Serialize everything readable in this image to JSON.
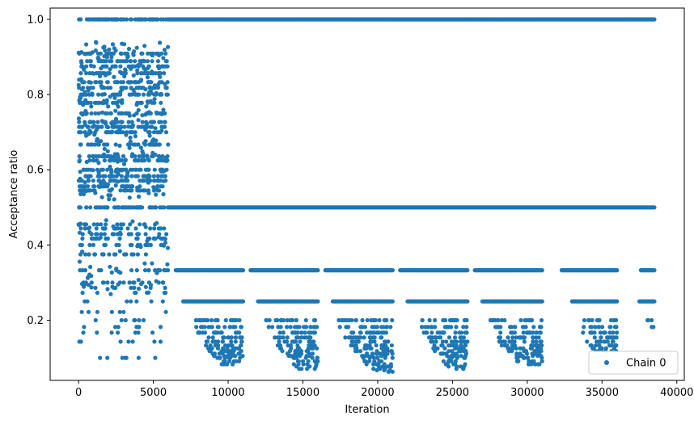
{
  "chart_data": {
    "type": "scatter",
    "title": "",
    "xlabel": "Iteration",
    "ylabel": "Acceptance ratio",
    "xlim": [
      -1900,
      40500
    ],
    "ylim": [
      0.04,
      1.03
    ],
    "xticks": [
      0,
      5000,
      10000,
      15000,
      20000,
      25000,
      30000,
      35000,
      40000
    ],
    "xtick_labels": [
      "0",
      "5000",
      "10000",
      "15000",
      "20000",
      "25000",
      "30000",
      "35000",
      "40000"
    ],
    "yticks": [
      0.2,
      0.4,
      0.6,
      0.8,
      1.0
    ],
    "ytick_labels": [
      "0.2",
      "0.4",
      "0.6",
      "0.8",
      "1.0"
    ],
    "grid": false,
    "legend_position": "lower-right",
    "color": "#1f77b4",
    "series": [
      {
        "name": "Chain 0",
        "description_phases": [
          {
            "x_range": [
              0,
              6000
            ],
            "y_levels_dense": [
              1.0,
              0.5,
              0.909,
              0.889,
              0.875,
              0.857,
              0.833,
              0.818,
              0.8,
              0.778,
              0.75,
              0.727,
              0.714,
              0.7,
              0.667,
              0.636,
              0.625,
              0.6,
              0.583,
              0.571,
              0.556,
              0.545,
              0.455,
              0.444,
              0.429,
              0.417,
              0.4,
              0.375,
              0.333,
              0.3,
              0.286,
              0.273,
              0.25,
              0.222,
              0.2,
              0.182,
              0.167,
              0.143,
              0.1
            ]
          },
          {
            "x_range": [
              6000,
              38500
            ],
            "y_levels_dense": [
              1.0,
              0.5,
              0.333
            ]
          }
        ],
        "dense_segments": [
          {
            "x": [
              6000,
              38500
            ],
            "y": 1.0
          },
          {
            "x": [
              6000,
              38500
            ],
            "y": 0.5
          },
          {
            "x": [
              6500,
              11000
            ],
            "y": 0.333
          },
          {
            "x": [
              11500,
              16000
            ],
            "y": 0.333
          },
          {
            "x": [
              16500,
              21000
            ],
            "y": 0.333
          },
          {
            "x": [
              21500,
              26000
            ],
            "y": 0.333
          },
          {
            "x": [
              26500,
              31000
            ],
            "y": 0.333
          },
          {
            "x": [
              32300,
              36000
            ],
            "y": 0.333
          },
          {
            "x": [
              37600,
              38500
            ],
            "y": 0.333
          },
          {
            "x": [
              7000,
              11000
            ],
            "y": 0.25
          },
          {
            "x": [
              12000,
              16000
            ],
            "y": 0.25
          },
          {
            "x": [
              17000,
              21000
            ],
            "y": 0.25
          },
          {
            "x": [
              22000,
              26000
            ],
            "y": 0.25
          },
          {
            "x": [
              27000,
              31000
            ],
            "y": 0.25
          },
          {
            "x": [
              33000,
              36000
            ],
            "y": 0.25
          },
          {
            "x": [
              37500,
              38500
            ],
            "y": 0.25
          }
        ],
        "burst_clusters": [
          {
            "x": [
              7700,
              11000
            ],
            "min_y": 0.08
          },
          {
            "x": [
              12500,
              16000
            ],
            "min_y": 0.07
          },
          {
            "x": [
              17300,
              21000
            ],
            "min_y": 0.06
          },
          {
            "x": [
              22800,
              26000
            ],
            "min_y": 0.07
          },
          {
            "x": [
              27500,
              31000
            ],
            "min_y": 0.08
          },
          {
            "x": [
              33500,
              36000
            ],
            "min_y": 0.1
          },
          {
            "x": [
              38000,
              38500
            ],
            "min_y": 0.18
          }
        ]
      }
    ]
  }
}
